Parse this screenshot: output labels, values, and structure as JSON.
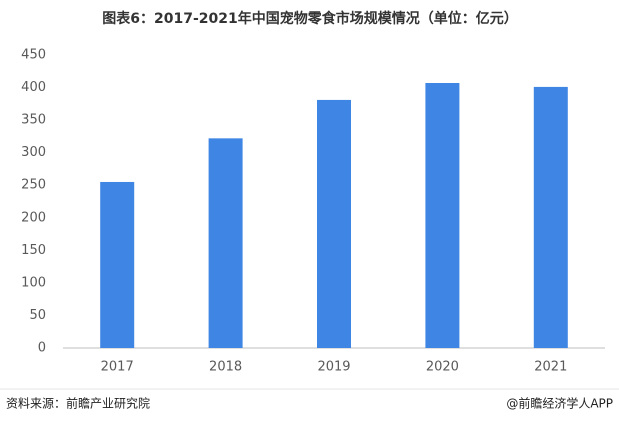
{
  "chart_data": {
    "type": "bar",
    "title": "图表6：2017-2021年中国宠物零食市场规模情况（单位：亿元）",
    "categories": [
      "2017",
      "2018",
      "2019",
      "2020",
      "2021"
    ],
    "values": [
      255,
      322,
      381,
      407,
      401
    ],
    "color": "#3f86e4",
    "ylim": [
      0,
      450
    ],
    "yticks": [
      0,
      50,
      100,
      150,
      200,
      250,
      300,
      350,
      400,
      450
    ],
    "grid": false
  },
  "footer": {
    "source": "资料来源：前瞻产业研究院",
    "credit": "@前瞻经济学人APP"
  }
}
